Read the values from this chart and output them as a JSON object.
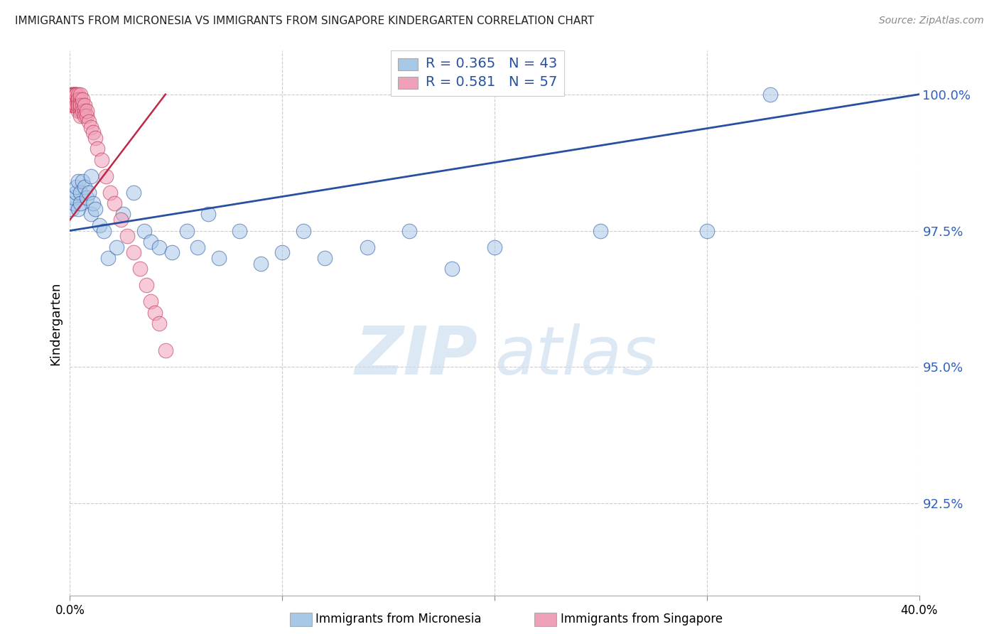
{
  "title": "IMMIGRANTS FROM MICRONESIA VS IMMIGRANTS FROM SINGAPORE KINDERGARTEN CORRELATION CHART",
  "source": "Source: ZipAtlas.com",
  "ylabel": "Kindergarten",
  "xlim": [
    0.0,
    0.4
  ],
  "ylim": [
    0.908,
    1.008
  ],
  "yticks": [
    0.925,
    0.95,
    0.975,
    1.0
  ],
  "ytick_labels": [
    "92.5%",
    "95.0%",
    "97.5%",
    "100.0%"
  ],
  "xtick_vals": [
    0.0,
    0.1,
    0.2,
    0.3,
    0.4
  ],
  "blue_R": 0.365,
  "blue_N": 43,
  "pink_R": 0.581,
  "pink_N": 57,
  "blue_color": "#a8c8e8",
  "pink_color": "#f0a0b8",
  "line_blue_color": "#2850a0",
  "line_pink_color": "#c02848",
  "legend_label_blue": "Immigrants from Micronesia",
  "legend_label_pink": "Immigrants from Singapore",
  "blue_x": [
    0.001,
    0.002,
    0.002,
    0.003,
    0.003,
    0.004,
    0.004,
    0.005,
    0.005,
    0.006,
    0.007,
    0.008,
    0.009,
    0.01,
    0.01,
    0.011,
    0.012,
    0.014,
    0.016,
    0.018,
    0.022,
    0.025,
    0.03,
    0.035,
    0.038,
    0.042,
    0.048,
    0.055,
    0.06,
    0.065,
    0.07,
    0.08,
    0.09,
    0.1,
    0.11,
    0.12,
    0.14,
    0.16,
    0.18,
    0.2,
    0.25,
    0.3,
    0.33
  ],
  "blue_y": [
    0.979,
    0.98,
    0.981,
    0.982,
    0.983,
    0.984,
    0.979,
    0.982,
    0.98,
    0.984,
    0.983,
    0.981,
    0.982,
    0.978,
    0.985,
    0.98,
    0.979,
    0.976,
    0.975,
    0.97,
    0.972,
    0.978,
    0.982,
    0.975,
    0.973,
    0.972,
    0.971,
    0.975,
    0.972,
    0.978,
    0.97,
    0.975,
    0.969,
    0.971,
    0.975,
    0.97,
    0.972,
    0.975,
    0.968,
    0.972,
    0.975,
    0.975,
    1.0
  ],
  "pink_x": [
    0.001,
    0.001,
    0.001,
    0.001,
    0.002,
    0.002,
    0.002,
    0.002,
    0.002,
    0.002,
    0.002,
    0.003,
    0.003,
    0.003,
    0.003,
    0.003,
    0.003,
    0.003,
    0.003,
    0.004,
    0.004,
    0.004,
    0.004,
    0.004,
    0.004,
    0.005,
    0.005,
    0.005,
    0.005,
    0.005,
    0.005,
    0.006,
    0.006,
    0.006,
    0.007,
    0.007,
    0.007,
    0.008,
    0.008,
    0.009,
    0.01,
    0.011,
    0.012,
    0.013,
    0.015,
    0.017,
    0.019,
    0.021,
    0.024,
    0.027,
    0.03,
    0.033,
    0.036,
    0.038,
    0.04,
    0.042,
    0.045
  ],
  "pink_y": [
    0.998,
    0.999,
    1.0,
    1.0,
    0.998,
    0.999,
    1.0,
    1.0,
    0.999,
    1.0,
    0.998,
    0.999,
    1.0,
    0.999,
    0.998,
    1.0,
    0.999,
    0.998,
    1.0,
    0.999,
    1.0,
    0.998,
    0.999,
    0.997,
    0.998,
    0.999,
    0.997,
    0.998,
    1.0,
    0.998,
    0.996,
    0.998,
    0.997,
    0.999,
    0.997,
    0.998,
    0.996,
    0.996,
    0.997,
    0.995,
    0.994,
    0.993,
    0.992,
    0.99,
    0.988,
    0.985,
    0.982,
    0.98,
    0.977,
    0.974,
    0.971,
    0.968,
    0.965,
    0.962,
    0.96,
    0.958,
    0.953
  ]
}
